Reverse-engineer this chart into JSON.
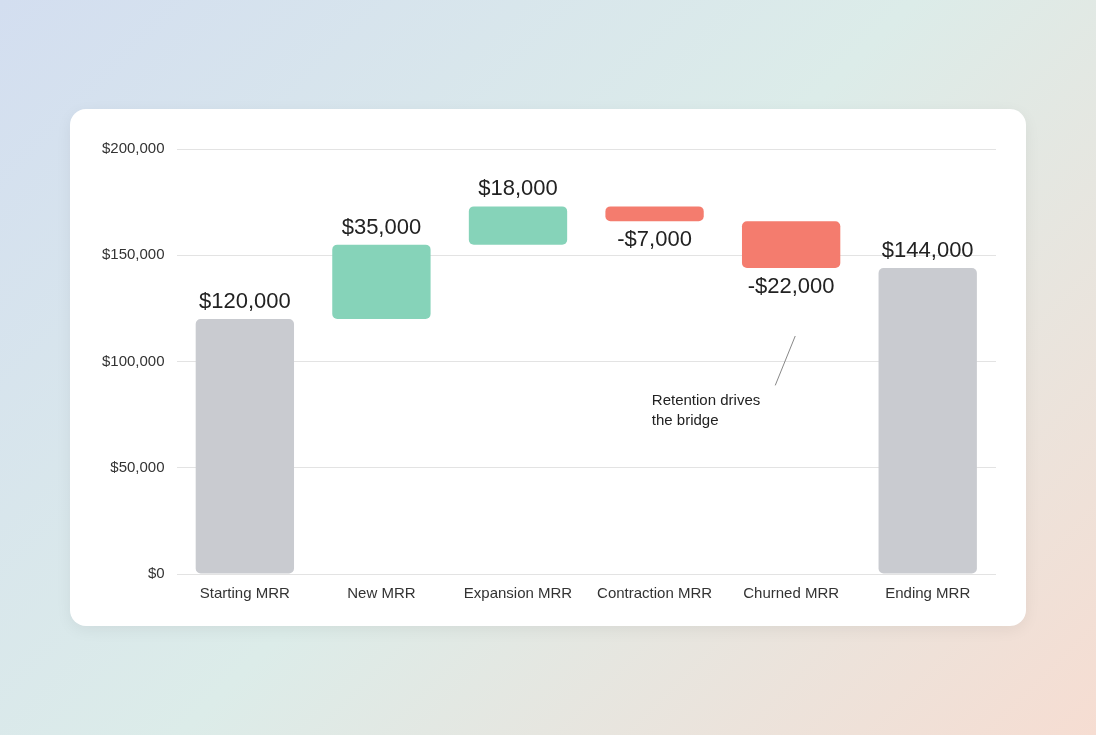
{
  "chart_data": {
    "type": "bar",
    "categories": [
      "Starting MRR",
      "New MRR",
      "Expansion MRR",
      "Contraction MRR",
      "Churned MRR",
      "Ending MRR"
    ],
    "values": [
      120000,
      35000,
      18000,
      -7000,
      -22000,
      144000
    ],
    "base": [
      0,
      120000,
      155000,
      173000,
      166000,
      0
    ],
    "colors": [
      "#c9cbd0",
      "#86d3b9",
      "#86d3b9",
      "#f47c6e",
      "#f47c6e",
      "#c9cbd0"
    ],
    "value_labels": [
      "$120,000",
      "$35,000",
      "$18,000",
      "-$7,000",
      "-$22,000",
      "$144,000"
    ],
    "ylim": [
      0,
      200000
    ],
    "yticks": [
      {
        "value": 0,
        "label": "$0"
      },
      {
        "value": 50000,
        "label": "$50,000"
      },
      {
        "value": 100000,
        "label": "$100,000"
      },
      {
        "value": 150000,
        "label": "$150,000"
      },
      {
        "value": 200000,
        "label": "$200,000"
      }
    ],
    "grid": "y",
    "legend": false,
    "annotations": [
      "Retention drives the bridge"
    ]
  }
}
